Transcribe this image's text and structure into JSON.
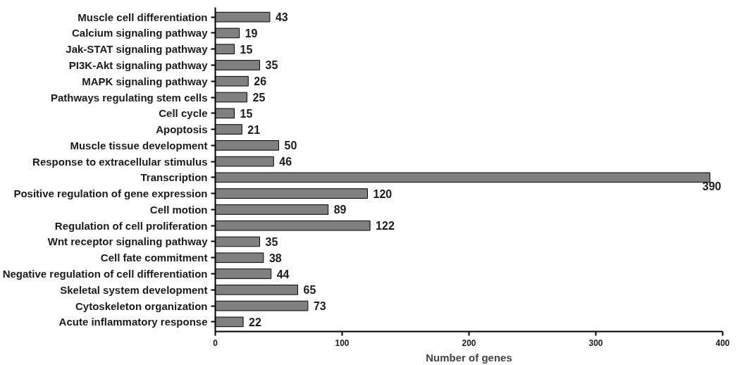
{
  "chart_data": {
    "type": "bar",
    "orientation": "horizontal",
    "xlabel": "Number of genes",
    "categories": [
      "Muscle cell differentiation",
      "Calcium signaling pathway",
      "Jak-STAT signaling pathway",
      "PI3K-Akt signaling pathway",
      "MAPK signaling pathway",
      "Pathways regulating stem cells",
      "Cell cycle",
      "Apoptosis",
      "Muscle tissue development",
      "Response to extracellular stimulus",
      "Transcription",
      "Positive regulation of gene expression",
      "Cell motion",
      "Regulation of cell proliferation",
      "Wnt receptor signaling pathway",
      "Cell fate commitment",
      "Negative regulation of cell differentiation",
      "Skeletal system development",
      "Cytoskeleton organization",
      "Acute inflammatory response"
    ],
    "values": [
      43,
      19,
      15,
      35,
      26,
      25,
      15,
      21,
      50,
      46,
      390,
      120,
      89,
      122,
      35,
      38,
      44,
      65,
      73,
      22
    ],
    "color": "#808080",
    "data_labels": true,
    "xlim": [
      0,
      400
    ],
    "xticks": [
      0,
      100,
      200,
      300,
      400
    ],
    "grid": false
  }
}
